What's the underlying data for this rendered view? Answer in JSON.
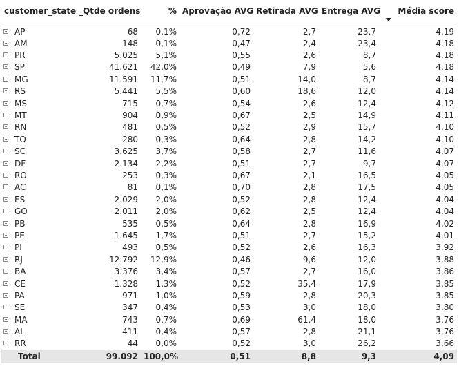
{
  "headers": {
    "state": "customer_state",
    "orders": "_Qtde ordens",
    "pct": "%",
    "approval": "Aprovação AVG",
    "pickup": "Retirada AVG",
    "delivery": "Entrega AVG",
    "score": "Média score"
  },
  "sort": {
    "column": "Média score",
    "direction": "descending"
  },
  "rows": [
    {
      "state": "AP",
      "orders": "68",
      "pct": "0,1%",
      "approval": "0,72",
      "pickup": "2,7",
      "delivery": "23,7",
      "score": "4,19"
    },
    {
      "state": "AM",
      "orders": "148",
      "pct": "0,1%",
      "approval": "0,47",
      "pickup": "2,4",
      "delivery": "23,4",
      "score": "4,18"
    },
    {
      "state": "PR",
      "orders": "5.025",
      "pct": "5,1%",
      "approval": "0,55",
      "pickup": "2,6",
      "delivery": "8,7",
      "score": "4,18"
    },
    {
      "state": "SP",
      "orders": "41.621",
      "pct": "42,0%",
      "approval": "0,49",
      "pickup": "7,9",
      "delivery": "5,6",
      "score": "4,18"
    },
    {
      "state": "MG",
      "orders": "11.591",
      "pct": "11,7%",
      "approval": "0,51",
      "pickup": "14,0",
      "delivery": "8,7",
      "score": "4,14"
    },
    {
      "state": "RS",
      "orders": "5.441",
      "pct": "5,5%",
      "approval": "0,60",
      "pickup": "18,6",
      "delivery": "12,0",
      "score": "4,14"
    },
    {
      "state": "MS",
      "orders": "715",
      "pct": "0,7%",
      "approval": "0,54",
      "pickup": "2,6",
      "delivery": "12,4",
      "score": "4,12"
    },
    {
      "state": "MT",
      "orders": "904",
      "pct": "0,9%",
      "approval": "0,67",
      "pickup": "2,5",
      "delivery": "14,9",
      "score": "4,11"
    },
    {
      "state": "RN",
      "orders": "481",
      "pct": "0,5%",
      "approval": "0,52",
      "pickup": "2,9",
      "delivery": "15,7",
      "score": "4,10"
    },
    {
      "state": "TO",
      "orders": "280",
      "pct": "0,3%",
      "approval": "0,64",
      "pickup": "2,8",
      "delivery": "14,2",
      "score": "4,10"
    },
    {
      "state": "SC",
      "orders": "3.625",
      "pct": "3,7%",
      "approval": "0,58",
      "pickup": "2,7",
      "delivery": "11,6",
      "score": "4,07"
    },
    {
      "state": "DF",
      "orders": "2.134",
      "pct": "2,2%",
      "approval": "0,51",
      "pickup": "2,7",
      "delivery": "9,7",
      "score": "4,07"
    },
    {
      "state": "RO",
      "orders": "253",
      "pct": "0,3%",
      "approval": "0,67",
      "pickup": "2,1",
      "delivery": "16,5",
      "score": "4,05"
    },
    {
      "state": "AC",
      "orders": "81",
      "pct": "0,1%",
      "approval": "0,70",
      "pickup": "2,8",
      "delivery": "17,5",
      "score": "4,05"
    },
    {
      "state": "ES",
      "orders": "2.029",
      "pct": "2,0%",
      "approval": "0,52",
      "pickup": "2,8",
      "delivery": "12,4",
      "score": "4,04"
    },
    {
      "state": "GO",
      "orders": "2.011",
      "pct": "2,0%",
      "approval": "0,62",
      "pickup": "2,5",
      "delivery": "12,4",
      "score": "4,04"
    },
    {
      "state": "PB",
      "orders": "535",
      "pct": "0,5%",
      "approval": "0,64",
      "pickup": "2,8",
      "delivery": "16,9",
      "score": "4,02"
    },
    {
      "state": "PE",
      "orders": "1.645",
      "pct": "1,7%",
      "approval": "0,51",
      "pickup": "2,7",
      "delivery": "15,2",
      "score": "4,01"
    },
    {
      "state": "PI",
      "orders": "493",
      "pct": "0,5%",
      "approval": "0,52",
      "pickup": "2,6",
      "delivery": "16,3",
      "score": "3,92"
    },
    {
      "state": "RJ",
      "orders": "12.792",
      "pct": "12,9%",
      "approval": "0,46",
      "pickup": "9,6",
      "delivery": "12,0",
      "score": "3,88"
    },
    {
      "state": "BA",
      "orders": "3.376",
      "pct": "3,4%",
      "approval": "0,57",
      "pickup": "2,7",
      "delivery": "16,0",
      "score": "3,86"
    },
    {
      "state": "CE",
      "orders": "1.328",
      "pct": "1,3%",
      "approval": "0,52",
      "pickup": "35,4",
      "delivery": "17,9",
      "score": "3,85"
    },
    {
      "state": "PA",
      "orders": "971",
      "pct": "1,0%",
      "approval": "0,59",
      "pickup": "2,8",
      "delivery": "20,3",
      "score": "3,85"
    },
    {
      "state": "SE",
      "orders": "347",
      "pct": "0,4%",
      "approval": "0,53",
      "pickup": "3,0",
      "delivery": "18,0",
      "score": "3,80"
    },
    {
      "state": "MA",
      "orders": "743",
      "pct": "0,7%",
      "approval": "0,69",
      "pickup": "61,4",
      "delivery": "18,0",
      "score": "3,76"
    },
    {
      "state": "AL",
      "orders": "411",
      "pct": "0,4%",
      "approval": "0,57",
      "pickup": "2,8",
      "delivery": "21,1",
      "score": "3,76"
    },
    {
      "state": "RR",
      "orders": "44",
      "pct": "0,0%",
      "approval": "0,52",
      "pickup": "3,0",
      "delivery": "26,2",
      "score": "3,66"
    }
  ],
  "total": {
    "label": "Total",
    "orders": "99.092",
    "pct": "100,0%",
    "approval": "0,51",
    "pickup": "8,8",
    "delivery": "9,3",
    "score": "4,09"
  },
  "colors": {
    "text": "#252423",
    "total_bg": "#e6e6e6",
    "expand_icon": "#8a8886"
  }
}
